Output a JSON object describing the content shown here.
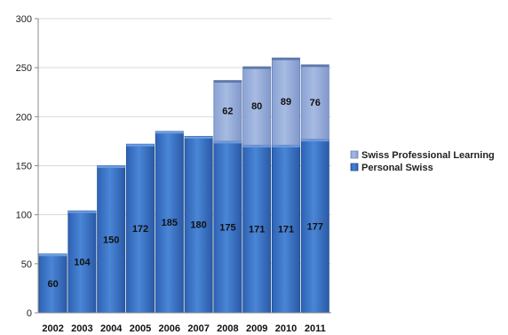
{
  "chart_data": {
    "type": "bar",
    "stacked": true,
    "categories": [
      "2002",
      "2003",
      "2004",
      "2005",
      "2006",
      "2007",
      "2008",
      "2009",
      "2010",
      "2011"
    ],
    "series": [
      {
        "name": "Personal Swiss",
        "values": [
          60,
          104,
          150,
          172,
          185,
          180,
          175,
          171,
          171,
          177
        ],
        "color": "#3d77c9"
      },
      {
        "name": "Swiss Professional Learning",
        "values": [
          null,
          null,
          null,
          null,
          null,
          null,
          62,
          80,
          89,
          76
        ],
        "color": "#96aedb"
      }
    ],
    "ylim": [
      0,
      300
    ],
    "yticks": [
      0,
      50,
      100,
      150,
      200,
      250,
      300
    ],
    "grid": true,
    "legend_position": "right",
    "title": "",
    "xlabel": "",
    "ylabel": ""
  }
}
